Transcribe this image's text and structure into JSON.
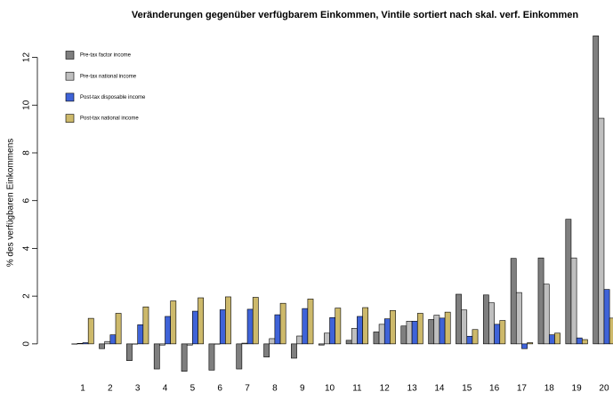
{
  "chart_data": {
    "type": "bar",
    "title": "Veränderungen gegenüber verfügbarem Einkommen, Vintile sortiert nach skal. verf. Einkommen",
    "y_label": "% des verfügbaren Einkommens",
    "categories": [
      "1",
      "2",
      "3",
      "4",
      "5",
      "6",
      "7",
      "8",
      "9",
      "10",
      "11",
      "12",
      "13",
      "14",
      "15",
      "16",
      "17",
      "18",
      "19",
      "20"
    ],
    "series": [
      {
        "name": "Pre-tax factor income",
        "color": "#7f7f7f",
        "values": [
          0,
          -0.2,
          -0.7,
          -1.05,
          -1.15,
          -1.1,
          -1.05,
          -0.55,
          -0.6,
          -0.05,
          0.15,
          0.5,
          0.75,
          1.02,
          2.08,
          2.05,
          3.58,
          3.6,
          5.22,
          12.9
        ]
      },
      {
        "name": "Pre-tax national income",
        "color": "#bfbfbf",
        "values": [
          0.02,
          0.1,
          0,
          -0.05,
          -0.05,
          0,
          0.03,
          0.22,
          0.33,
          0.45,
          0.65,
          0.82,
          0.95,
          1.2,
          1.42,
          1.72,
          2.15,
          2.5,
          3.6,
          9.45
        ]
      },
      {
        "name": "Post-tax disposable income",
        "color": "#3f63d8",
        "values": [
          0.05,
          0.38,
          0.8,
          1.15,
          1.37,
          1.43,
          1.45,
          1.22,
          1.48,
          1.1,
          1.15,
          1.05,
          0.95,
          1.08,
          0.32,
          0.82,
          -0.2,
          0.38,
          0.25,
          2.28
        ]
      },
      {
        "name": "Post-tax national income",
        "color": "#cdb96b",
        "values": [
          1.07,
          1.28,
          1.55,
          1.8,
          1.93,
          1.97,
          1.95,
          1.7,
          1.88,
          1.5,
          1.52,
          1.4,
          1.28,
          1.33,
          0.6,
          0.98,
          0.05,
          0.45,
          0.18,
          1.08
        ]
      }
    ],
    "ylim": [
      -1.42,
      13.1
    ],
    "yticks": [
      0,
      2,
      4,
      6,
      8,
      10,
      12
    ],
    "legend": "topleft"
  }
}
